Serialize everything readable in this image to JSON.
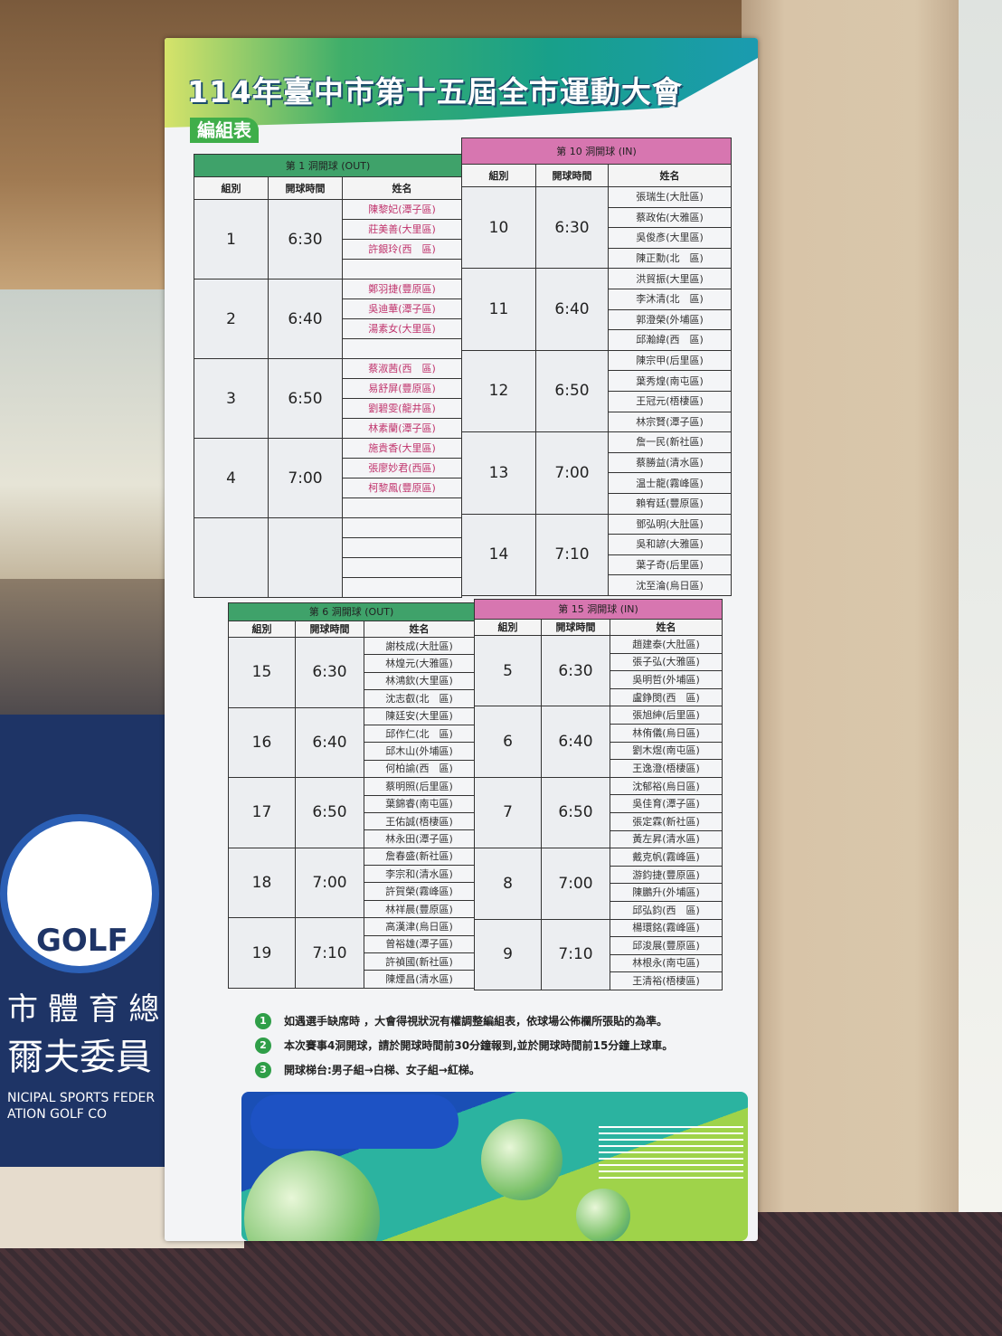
{
  "poster": {
    "title": "114年臺中市第十五屆全市運動大會",
    "subtitle": "編組表",
    "column_headers": [
      "組別",
      "開球時間",
      "姓名"
    ],
    "sections": [
      {
        "header": "第 1 洞開球 (OUT)",
        "color": "#3fa26a",
        "name_color": "#c0336c",
        "groups": [
          {
            "group": "1",
            "time": "6:30",
            "names": [
              "陳黎妃(潭子區)",
              "莊美善(大里區)",
              "許銀玲(西　區)",
              ""
            ]
          },
          {
            "group": "2",
            "time": "6:40",
            "names": [
              "鄭羽捷(豐原區)",
              "吳迪華(潭子區)",
              "湯素女(大里區)",
              ""
            ]
          },
          {
            "group": "3",
            "time": "6:50",
            "names": [
              "蔡淑茜(西　區)",
              "易舒屏(豐原區)",
              "劉碧雯(龍井區)",
              "林素蘭(潭子區)"
            ]
          },
          {
            "group": "4",
            "time": "7:00",
            "names": [
              "施貴香(大里區)",
              "張廖妙君(西區)",
              "柯黎鳳(豐原區)",
              ""
            ]
          },
          {
            "group": "",
            "time": "",
            "names": [
              "",
              "",
              "",
              ""
            ]
          }
        ]
      },
      {
        "header": "第 10 洞開球 (IN)",
        "color": "#d776b0",
        "name_color": "#333333",
        "groups": [
          {
            "group": "10",
            "time": "6:30",
            "names": [
              "張瑞生(大肚區)",
              "蔡政佑(大雅區)",
              "吳俊彥(大里區)",
              "陳正勳(北　區)"
            ]
          },
          {
            "group": "11",
            "time": "6:40",
            "names": [
              "洪貿振(大里區)",
              "李沐清(北　區)",
              "郭澄榮(外埔區)",
              "邱瀚緯(西　區)"
            ]
          },
          {
            "group": "12",
            "time": "6:50",
            "names": [
              "陳宗甲(后里區)",
              "葉秀煌(南屯區)",
              "王冠元(梧棲區)",
              "林宗賢(潭子區)"
            ]
          },
          {
            "group": "13",
            "time": "7:00",
            "names": [
              "詹一民(新社區)",
              "蔡勝益(清水區)",
              "温士龍(霧峰區)",
              "賴宥廷(豐原區)"
            ]
          },
          {
            "group": "14",
            "time": "7:10",
            "names": [
              "鄧弘明(大肚區)",
              "吳和諺(大雅區)",
              "葉子奇(后里區)",
              "沈至淪(烏日區)"
            ]
          }
        ]
      },
      {
        "header": "第 6 洞開球 (OUT)",
        "color": "#3fa26a",
        "name_color": "#333333",
        "groups": [
          {
            "group": "15",
            "time": "6:30",
            "names": [
              "謝枝成(大肚區)",
              "林煌元(大雅區)",
              "林鴻欽(大里區)",
              "沈志叡(北　區)"
            ]
          },
          {
            "group": "16",
            "time": "6:40",
            "names": [
              "陳廷安(大里區)",
              "邱作仁(北　區)",
              "邱木山(外埔區)",
              "何柏諭(西　區)"
            ]
          },
          {
            "group": "17",
            "time": "6:50",
            "names": [
              "蔡明照(后里區)",
              "葉錦睿(南屯區)",
              "王佑誠(梧棲區)",
              "林永田(潭子區)"
            ]
          },
          {
            "group": "18",
            "time": "7:00",
            "names": [
              "詹春盛(新社區)",
              "李宗和(清水區)",
              "許賀榮(霧峰區)",
              "林祥晨(豐原區)"
            ]
          },
          {
            "group": "19",
            "time": "7:10",
            "names": [
              "高漢津(烏日區)",
              "曾裕雄(潭子區)",
              "許禎國(新社區)",
              "陳煙昌(清水區)"
            ]
          }
        ]
      },
      {
        "header": "第 15 洞開球 (IN)",
        "color": "#d776b0",
        "name_color": "#333333",
        "groups": [
          {
            "group": "5",
            "time": "6:30",
            "names": [
              "趙建泰(大肚區)",
              "張子弘(大雅區)",
              "吳明哲(外埔區)",
              "盧錚閔(西　區)"
            ]
          },
          {
            "group": "6",
            "time": "6:40",
            "names": [
              "張旭紳(后里區)",
              "林侑儀(烏日區)",
              "劉木煜(南屯區)",
              "王逸澄(梧棲區)"
            ]
          },
          {
            "group": "7",
            "time": "6:50",
            "names": [
              "沈郁裕(烏日區)",
              "吳佳育(潭子區)",
              "張定霖(新社區)",
              "黃左昇(清水區)"
            ]
          },
          {
            "group": "8",
            "time": "7:00",
            "names": [
              "戴克帆(霧峰區)",
              "游鈞捷(豐原區)",
              "陳鵬升(外埔區)",
              "邱弘鈞(西　區)"
            ]
          },
          {
            "group": "9",
            "time": "7:10",
            "names": [
              "楊環銘(霧峰區)",
              "邱浚展(豐原區)",
              "林根永(南屯區)",
              "王清裕(梧棲區)"
            ]
          }
        ]
      }
    ],
    "notes": [
      {
        "num": "1",
        "text": "如遇選手缺席時 ，大會得視狀況有權調整編組表，依球場公佈欄所張貼的為準。"
      },
      {
        "num": "2",
        "text": "本次賽事4洞開球，請於開球時間前30分鐘報到,並於開球時間前15分鐘上球車。"
      },
      {
        "num": "3",
        "text": "開球梯台:男子組→白梯、女子組→紅梯。"
      }
    ]
  },
  "background_banner": {
    "logo_text": "GOLF",
    "line1": "市 體 育 總",
    "line2": "爾夫委員",
    "english": "NICIPAL SPORTS FEDERATION GOLF CO"
  }
}
